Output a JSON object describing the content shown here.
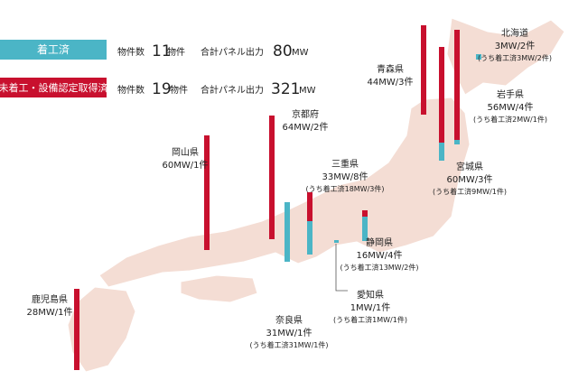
{
  "legend": [
    {
      "label": "着工済",
      "count_label": "物件数",
      "count": 11,
      "count_unit": "物件",
      "power_label": "合計パネル出力",
      "power": 80,
      "power_unit": "MW"
    },
    {
      "label": "未着工・設備認定取得済",
      "count_label": "物件数",
      "count": 19,
      "count_unit": "物件",
      "power_label": "合計パネル出力",
      "power": 321,
      "power_unit": "MW"
    }
  ],
  "regions": [
    {
      "name": "北海道",
      "detail": "3MW/2件",
      "note": "(うち着工済3MW/2件)"
    },
    {
      "name": "青森県",
      "detail": "44MW/3件"
    },
    {
      "name": "岩手県",
      "detail": "56MW/4件",
      "note": "(うち着工済2MW/1件)"
    },
    {
      "name": "宮城県",
      "detail": "60MW/3件",
      "note": "(うち着工済9MW/1件)"
    },
    {
      "name": "京都府",
      "detail": "64MW/2件"
    },
    {
      "name": "岡山県",
      "detail": "60MW/1件"
    },
    {
      "name": "三重県",
      "detail": "33MW/8件",
      "note": "(うち着工済18MW/3件)"
    },
    {
      "name": "奈良県",
      "detail": "31MW/1件",
      "note": "(うち着工済31MW/1件)"
    },
    {
      "name": "静岡県",
      "detail": "16MW/4件",
      "note": "(うち着工済13MW/2件)"
    },
    {
      "name": "愛知県",
      "detail": "1MW/1件",
      "note": "(うち着工済1MW/1件)"
    },
    {
      "name": "鹿児島県",
      "detail": "28MW/1件"
    }
  ]
}
